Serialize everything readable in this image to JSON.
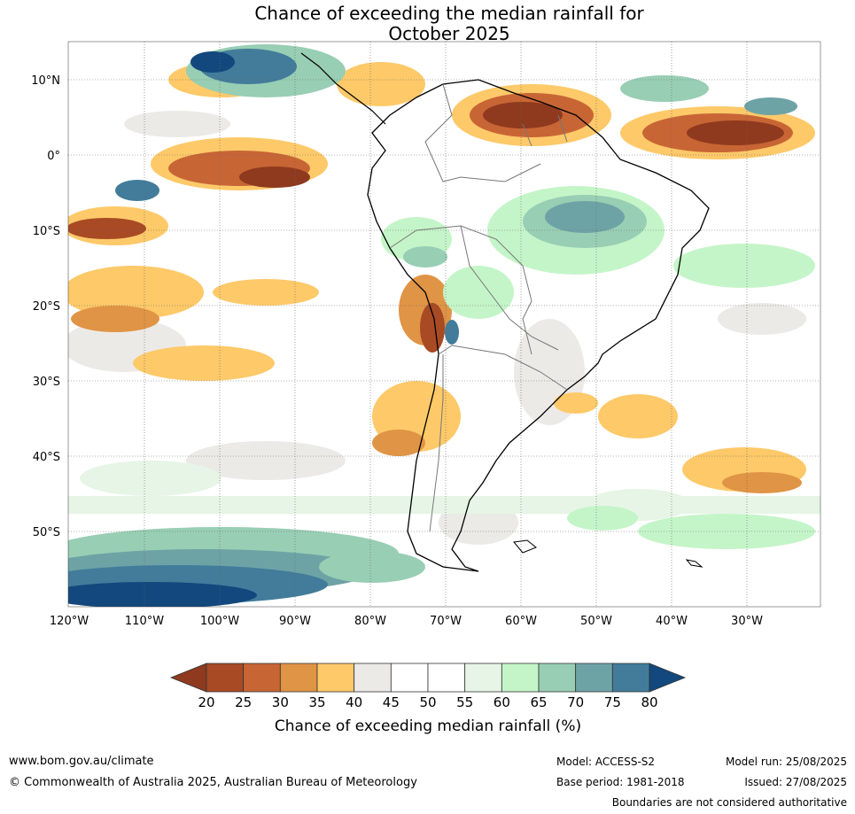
{
  "title": {
    "line1": "Chance of exceeding the median rainfall for",
    "line2": "October 2025"
  },
  "map": {
    "lat_labels": [
      "10°N",
      "0°",
      "10°S",
      "20°S",
      "30°S",
      "40°S",
      "50°S"
    ],
    "lon_labels": [
      "120°W",
      "110°W",
      "100°W",
      "90°W",
      "80°W",
      "70°W",
      "60°W",
      "50°W",
      "40°W",
      "30°W"
    ]
  },
  "colorbar": {
    "ticks": [
      "20",
      "25",
      "30",
      "35",
      "40",
      "45",
      "50",
      "55",
      "60",
      "65",
      "70",
      "75",
      "80"
    ],
    "colors": [
      "#8f3a1e",
      "#a84a24",
      "#c86535",
      "#e09445",
      "#fdc969",
      "#eceae6",
      "#ffffff",
      "#ffffff",
      "#e6f5e6",
      "#c4f5c8",
      "#98ceb4",
      "#6ea3a6",
      "#427c9a",
      "#12487d"
    ],
    "label": "Chance of exceeding median rainfall (%)"
  },
  "footer": {
    "url": "www.bom.gov.au/climate",
    "copyright": "© Commonwealth of Australia 2025, Australian Bureau of Meteorology",
    "model": "Model: ACCESS-S2",
    "base_period": "Base period: 1981-2018",
    "model_run": "Model run: 25/08/2025",
    "issued": "Issued: 27/08/2025",
    "disclaimer": "Boundaries are not considered authoritative"
  }
}
